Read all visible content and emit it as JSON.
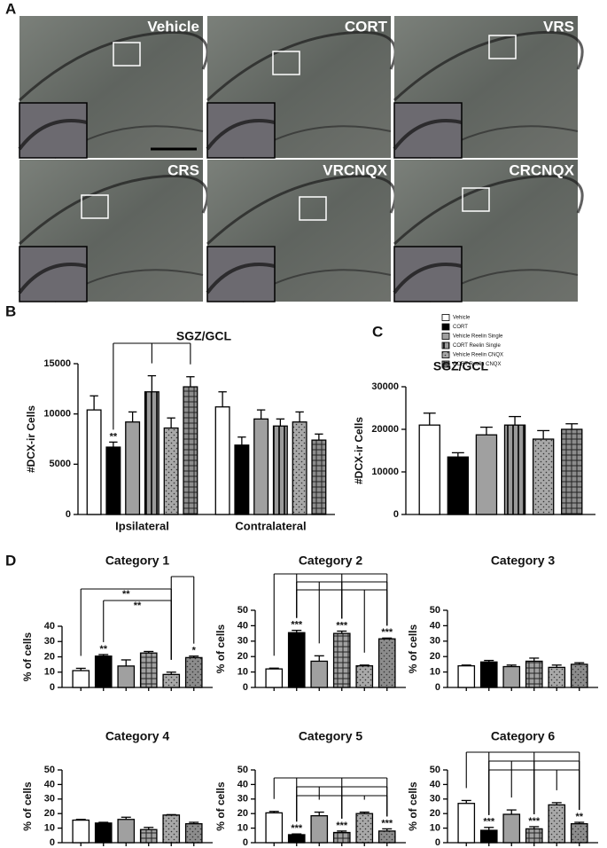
{
  "panel_labels": [
    "A",
    "B",
    "C",
    "D"
  ],
  "micrographs": [
    "Vehicle",
    "CORT",
    "VRS",
    "CRS",
    "VRCNQX",
    "CRCNQX"
  ],
  "chart_data": [
    {
      "type": "bar",
      "title": "SGZ/GCL",
      "y_label": "#DCX-ir Cells",
      "categories": [
        "Ipsilateral",
        "Contralateral"
      ],
      "ylim": [
        0,
        15000
      ],
      "yticks": [
        0,
        5000,
        10000,
        15000
      ],
      "legend": "top-right",
      "series": [
        {
          "name": "Vehicle",
          "color": "#ffffff",
          "pattern": "none",
          "values": [
            10400,
            10700
          ],
          "errors": [
            1400,
            1500
          ],
          "significance": [
            null,
            null
          ]
        },
        {
          "name": "CORT",
          "color": "#000000",
          "pattern": "none",
          "values": [
            6700,
            6900
          ],
          "errors": [
            500,
            800
          ],
          "significance": [
            "**",
            null
          ]
        },
        {
          "name": "Vehicle Reelin Single",
          "color": "#a0a0a0",
          "pattern": "none",
          "values": [
            9200,
            9500
          ],
          "errors": [
            1000,
            900
          ],
          "significance": [
            null,
            null
          ]
        },
        {
          "name": "CORT Reelin Single",
          "color": "#9a9a9a",
          "pattern": "vertical-stripes",
          "values": [
            12200,
            8800
          ],
          "errors": [
            1600,
            700
          ],
          "significance": [
            null,
            null
          ]
        },
        {
          "name": "Vehicle Reelin CNQX",
          "color": "#a8a8a8",
          "pattern": "dots",
          "values": [
            8600,
            9200
          ],
          "errors": [
            1000,
            1000
          ],
          "significance": [
            null,
            null
          ]
        },
        {
          "name": "CORT Reelin CNQX",
          "color": "#8c8c8c",
          "pattern": "crosshatch",
          "values": [
            12700,
            7400
          ],
          "errors": [
            1000,
            600
          ],
          "significance": [
            null,
            null
          ]
        }
      ]
    },
    {
      "type": "bar",
      "title": "SGZ/GCL",
      "y_label": "#DCX-ir Cells",
      "categories": [
        null
      ],
      "ylim": [
        0,
        30000
      ],
      "yticks": [
        0,
        10000,
        20000,
        30000
      ],
      "series": [
        {
          "color": "#ffffff",
          "pattern": "none",
          "values": [
            21000
          ],
          "errors": [
            2800
          ]
        },
        {
          "color": "#000000",
          "pattern": "none",
          "values": [
            13500
          ],
          "errors": [
            1000
          ]
        },
        {
          "color": "#a0a0a0",
          "pattern": "none",
          "values": [
            18700
          ],
          "errors": [
            1800
          ]
        },
        {
          "color": "#9a9a9a",
          "pattern": "vertical-stripes",
          "values": [
            21000
          ],
          "errors": [
            2000
          ]
        },
        {
          "color": "#a8a8a8",
          "pattern": "dots",
          "values": [
            17700
          ],
          "errors": [
            2000
          ]
        },
        {
          "color": "#8c8c8c",
          "pattern": "crosshatch",
          "values": [
            20000
          ],
          "errors": [
            1300
          ]
        }
      ]
    },
    {
      "type": "bar",
      "title": "Category 1",
      "y_label": "% of cells",
      "categories": [
        null
      ],
      "ylim": [
        0,
        40
      ],
      "yticks": [
        0,
        10,
        20,
        30,
        40
      ],
      "bracket_labels": [
        "**",
        "**"
      ],
      "series": [
        {
          "color": "#ffffff",
          "pattern": "none",
          "values": [
            11
          ],
          "errors": [
            1.5
          ],
          "significance": [
            null
          ]
        },
        {
          "color": "#000000",
          "pattern": "none",
          "values": [
            20.5
          ],
          "errors": [
            1
          ],
          "significance": [
            "**"
          ]
        },
        {
          "color": "#a0a0a0",
          "pattern": "none",
          "values": [
            14
          ],
          "errors": [
            4
          ],
          "significance": [
            null
          ]
        },
        {
          "color": "#a0a0a0",
          "pattern": "crosshatch",
          "values": [
            22.5
          ],
          "errors": [
            1
          ],
          "significance": [
            null
          ]
        },
        {
          "color": "#a8a8a8",
          "pattern": "dots",
          "values": [
            8.5
          ],
          "errors": [
            1.5
          ],
          "significance": [
            null
          ]
        },
        {
          "color": "#8c8c8c",
          "pattern": "dots",
          "values": [
            19.5
          ],
          "errors": [
            1
          ],
          "significance": [
            "*"
          ]
        }
      ]
    },
    {
      "type": "bar",
      "title": "Category 2",
      "y_label": "% of cells",
      "categories": [
        null
      ],
      "ylim": [
        0,
        50
      ],
      "yticks": [
        0,
        10,
        20,
        30,
        40,
        50
      ],
      "series": [
        {
          "color": "#ffffff",
          "pattern": "none",
          "values": [
            12
          ],
          "errors": [
            0.5
          ],
          "significance": [
            null
          ]
        },
        {
          "color": "#000000",
          "pattern": "none",
          "values": [
            35.5
          ],
          "errors": [
            1.5
          ],
          "significance": [
            "***"
          ]
        },
        {
          "color": "#a0a0a0",
          "pattern": "none",
          "values": [
            17
          ],
          "errors": [
            3.5
          ],
          "significance": [
            null
          ]
        },
        {
          "color": "#a0a0a0",
          "pattern": "crosshatch",
          "values": [
            35
          ],
          "errors": [
            1.5
          ],
          "significance": [
            "***"
          ]
        },
        {
          "color": "#a8a8a8",
          "pattern": "dots",
          "values": [
            14
          ],
          "errors": [
            0.5
          ],
          "significance": [
            null
          ]
        },
        {
          "color": "#8c8c8c",
          "pattern": "dots",
          "values": [
            31.5
          ],
          "errors": [
            0.5
          ],
          "significance": [
            "***"
          ]
        }
      ]
    },
    {
      "type": "bar",
      "title": "Category 3",
      "y_label": "% of cells",
      "categories": [
        null
      ],
      "ylim": [
        0,
        50
      ],
      "yticks": [
        0,
        10,
        20,
        30,
        40,
        50
      ],
      "series": [
        {
          "color": "#ffffff",
          "pattern": "none",
          "values": [
            14
          ],
          "errors": [
            0.5
          ]
        },
        {
          "color": "#000000",
          "pattern": "none",
          "values": [
            16.5
          ],
          "errors": [
            1
          ]
        },
        {
          "color": "#a0a0a0",
          "pattern": "none",
          "values": [
            13.5
          ],
          "errors": [
            1
          ]
        },
        {
          "color": "#a0a0a0",
          "pattern": "crosshatch",
          "values": [
            17
          ],
          "errors": [
            2
          ]
        },
        {
          "color": "#a8a8a8",
          "pattern": "dots",
          "values": [
            13
          ],
          "errors": [
            1.5
          ]
        },
        {
          "color": "#8c8c8c",
          "pattern": "dots",
          "values": [
            15
          ],
          "errors": [
            1
          ]
        }
      ]
    },
    {
      "type": "bar",
      "title": "Category 4",
      "y_label": "% of cells",
      "categories": [
        null
      ],
      "ylim": [
        0,
        50
      ],
      "yticks": [
        0,
        10,
        20,
        30,
        40,
        50
      ],
      "series": [
        {
          "color": "#ffffff",
          "pattern": "none",
          "values": [
            15.5
          ],
          "errors": [
            0.5
          ]
        },
        {
          "color": "#000000",
          "pattern": "none",
          "values": [
            13.5
          ],
          "errors": [
            0.5
          ]
        },
        {
          "color": "#a0a0a0",
          "pattern": "none",
          "values": [
            16
          ],
          "errors": [
            1.5
          ]
        },
        {
          "color": "#a0a0a0",
          "pattern": "crosshatch",
          "values": [
            9
          ],
          "errors": [
            1.5
          ]
        },
        {
          "color": "#a8a8a8",
          "pattern": "dots",
          "values": [
            19
          ],
          "errors": [
            0.3
          ]
        },
        {
          "color": "#8c8c8c",
          "pattern": "dots",
          "values": [
            13
          ],
          "errors": [
            1
          ]
        }
      ]
    },
    {
      "type": "bar",
      "title": "Category 5",
      "y_label": "% of cells",
      "categories": [
        null
      ],
      "ylim": [
        0,
        50
      ],
      "yticks": [
        0,
        10,
        20,
        30,
        40,
        50
      ],
      "series": [
        {
          "color": "#ffffff",
          "pattern": "none",
          "values": [
            20.5
          ],
          "errors": [
            1
          ],
          "significance": [
            null
          ]
        },
        {
          "color": "#000000",
          "pattern": "none",
          "values": [
            5.5
          ],
          "errors": [
            0.5
          ],
          "significance": [
            "***"
          ]
        },
        {
          "color": "#a0a0a0",
          "pattern": "none",
          "values": [
            18.5
          ],
          "errors": [
            2.5
          ],
          "significance": [
            null
          ]
        },
        {
          "color": "#a0a0a0",
          "pattern": "crosshatch",
          "values": [
            7
          ],
          "errors": [
            1
          ],
          "significance": [
            "***"
          ]
        },
        {
          "color": "#a8a8a8",
          "pattern": "dots",
          "values": [
            20
          ],
          "errors": [
            1
          ],
          "significance": [
            null
          ]
        },
        {
          "color": "#8c8c8c",
          "pattern": "dots",
          "values": [
            8
          ],
          "errors": [
            1.5
          ],
          "significance": [
            "***"
          ]
        }
      ]
    },
    {
      "type": "bar",
      "title": "Category 6",
      "y_label": "% of cells",
      "categories": [
        null
      ],
      "ylim": [
        0,
        50
      ],
      "yticks": [
        0,
        10,
        20,
        30,
        40,
        50
      ],
      "series": [
        {
          "color": "#ffffff",
          "pattern": "none",
          "values": [
            27
          ],
          "errors": [
            2
          ],
          "significance": [
            null
          ]
        },
        {
          "color": "#000000",
          "pattern": "none",
          "values": [
            8.5
          ],
          "errors": [
            2
          ],
          "significance": [
            "***"
          ]
        },
        {
          "color": "#a0a0a0",
          "pattern": "none",
          "values": [
            19.5
          ],
          "errors": [
            3
          ],
          "significance": [
            null
          ]
        },
        {
          "color": "#a0a0a0",
          "pattern": "crosshatch",
          "values": [
            9.5
          ],
          "errors": [
            1.5
          ],
          "significance": [
            "***"
          ]
        },
        {
          "color": "#a8a8a8",
          "pattern": "dots",
          "values": [
            26
          ],
          "errors": [
            1.5
          ],
          "significance": [
            null
          ]
        },
        {
          "color": "#8c8c8c",
          "pattern": "dots",
          "values": [
            13
          ],
          "errors": [
            1
          ],
          "significance": [
            "**"
          ]
        }
      ]
    }
  ]
}
